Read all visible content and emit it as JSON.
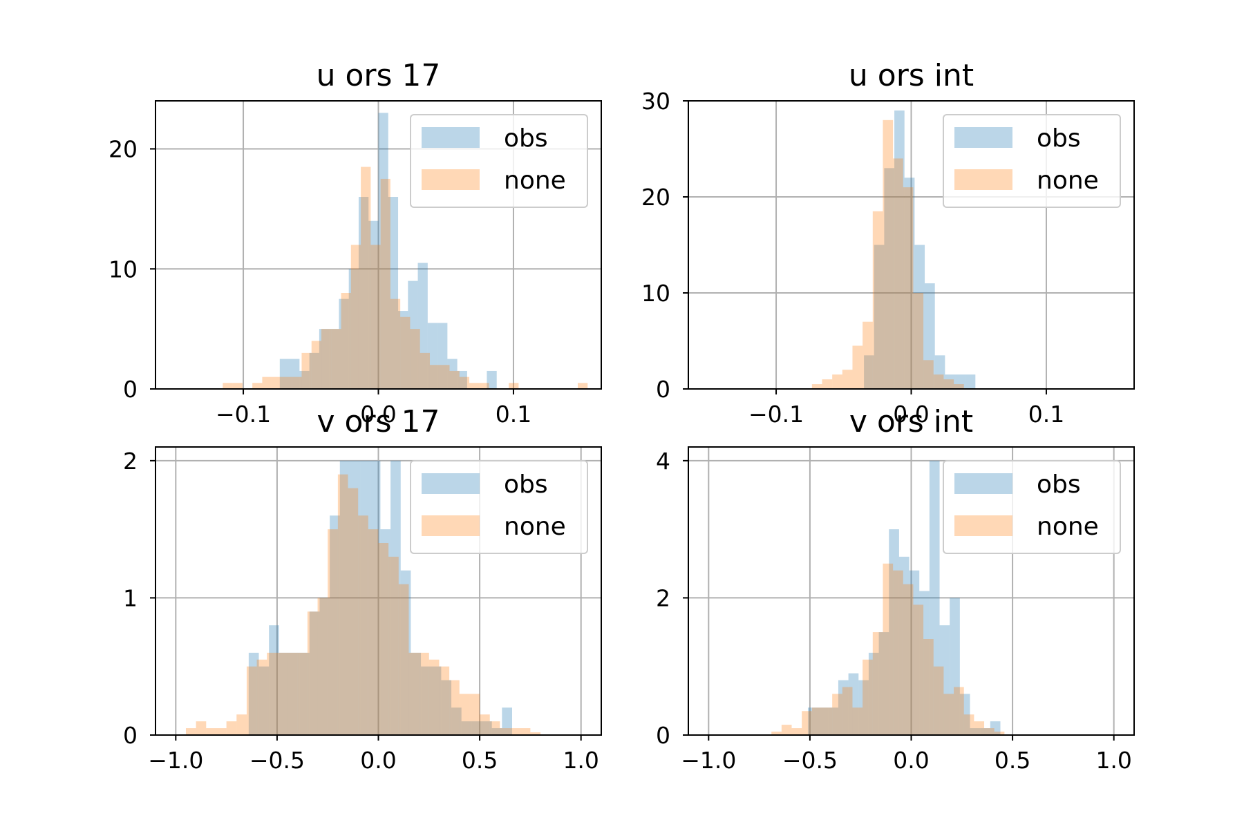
{
  "figure": {
    "background": "#ffffff"
  },
  "colors": {
    "obs": "#1f77b4",
    "none": "#ff7f0e",
    "bar_alpha": 0.3
  },
  "chart_data": [
    {
      "type": "bar",
      "title": "u ors 17",
      "xlim": [
        -0.165,
        0.165
      ],
      "ylim": [
        0,
        24
      ],
      "xticks": [
        -0.1,
        0.0,
        0.1
      ],
      "xtick_labels": [
        "−0.1",
        "0.0",
        "0.1"
      ],
      "yticks": [
        0,
        10,
        20
      ],
      "ytick_labels": [
        "0",
        "10",
        "20"
      ],
      "grid": true,
      "legend_position": "upper right",
      "series": [
        {
          "name": "obs",
          "bin_start": -0.073,
          "bin_width": 0.0073,
          "counts": [
            2.5,
            2.5,
            1.5,
            3,
            5,
            5,
            7.5,
            10,
            16,
            14,
            23,
            16,
            6.5,
            9,
            10.5,
            5.5,
            5.5,
            2.5,
            1.5,
            0,
            0,
            1.5
          ]
        },
        {
          "name": "none",
          "bin_start": -0.1152,
          "bin_width": 0.0073,
          "counts": [
            0.5,
            0.5,
            0,
            0.5,
            1,
            1,
            1,
            1,
            3,
            4,
            5,
            5,
            8,
            12,
            18.5,
            12,
            17.5,
            7.5,
            6,
            5,
            3,
            2,
            2,
            1.5,
            1,
            0.5,
            0.5,
            0,
            0,
            0.5,
            0,
            0,
            0,
            0,
            0,
            0,
            0.5
          ]
        }
      ]
    },
    {
      "type": "bar",
      "title": "u ors int",
      "xlim": [
        -0.165,
        0.165
      ],
      "ylim": [
        0,
        30
      ],
      "xticks": [
        -0.1,
        0.0,
        0.1
      ],
      "xtick_labels": [
        "−0.1",
        "0.0",
        "0.1"
      ],
      "yticks": [
        0,
        10,
        20,
        30
      ],
      "ytick_labels": [
        "0",
        "10",
        "20",
        "30"
      ],
      "grid": true,
      "legend_position": "upper right",
      "series": [
        {
          "name": "obs",
          "bin_start": -0.035,
          "bin_width": 0.0075,
          "counts": [
            3.5,
            15,
            23,
            29,
            22,
            15,
            11,
            3.5,
            1.5,
            1.5,
            1.5
          ]
        },
        {
          "name": "none",
          "bin_start": -0.0735,
          "bin_width": 0.0075,
          "counts": [
            0.5,
            1,
            1.5,
            2,
            4.5,
            7,
            18.5,
            28,
            24,
            21,
            10,
            3,
            1.5,
            1,
            0.5
          ]
        }
      ]
    },
    {
      "type": "bar",
      "title": "v ors 17",
      "xlim": [
        -1.1,
        1.1
      ],
      "ylim": [
        0,
        2.1
      ],
      "xticks": [
        -1.0,
        -0.5,
        0.0,
        0.5,
        1.0
      ],
      "xtick_labels": [
        "−1.0",
        "−0.5",
        "0.0",
        "0.5",
        "1.0"
      ],
      "yticks": [
        0,
        1,
        2
      ],
      "ytick_labels": [
        "0",
        "1",
        "2"
      ],
      "grid": true,
      "legend_position": "upper right",
      "series": [
        {
          "name": "obs",
          "bin_start": -0.64,
          "bin_width": 0.05,
          "counts": [
            0.6,
            0.5,
            0.8,
            0.6,
            0.6,
            0.6,
            0.9,
            1.0,
            1.6,
            2.0,
            2.0,
            2.0,
            2.0,
            1.5,
            2.0,
            1.2,
            0.6,
            0.5,
            0.5,
            0.4,
            0.2,
            0.1,
            0.1,
            0.1,
            0.05,
            0.2
          ]
        },
        {
          "name": "none",
          "bin_start": -0.95,
          "bin_width": 0.05,
          "counts": [
            0.05,
            0.1,
            0.05,
            0.05,
            0.1,
            0.15,
            0.5,
            0.55,
            0.6,
            0.6,
            0.6,
            0.6,
            0.9,
            1.0,
            1.5,
            1.9,
            1.8,
            1.6,
            1.5,
            1.4,
            1.3,
            1.1,
            0.6,
            0.6,
            0.55,
            0.5,
            0.4,
            0.3,
            0.3,
            0.15,
            0.1,
            0.05,
            0.05,
            0.05,
            0.02
          ]
        }
      ]
    },
    {
      "type": "bar",
      "title": "v ors int",
      "xlim": [
        -1.1,
        1.1
      ],
      "ylim": [
        0,
        4.2
      ],
      "xticks": [
        -1.0,
        -0.5,
        0.0,
        0.5,
        1.0
      ],
      "xtick_labels": [
        "−1.0",
        "−0.5",
        "0.0",
        "0.5",
        "1.0"
      ],
      "yticks": [
        0,
        2,
        4
      ],
      "ytick_labels": [
        "0",
        "2",
        "4"
      ],
      "grid": true,
      "legend_position": "upper right",
      "series": [
        {
          "name": "obs",
          "bin_start": -0.51,
          "bin_width": 0.05,
          "counts": [
            0.4,
            0.4,
            0.4,
            0.8,
            0.9,
            0.8,
            1.2,
            1.5,
            3.0,
            2.6,
            2.4,
            2.1,
            4.0,
            1.6,
            2.0,
            0.6,
            0.1,
            0.1,
            0.2
          ]
        },
        {
          "name": "none",
          "bin_start": -0.69,
          "bin_width": 0.05,
          "counts": [
            0.05,
            0.15,
            0.1,
            0.35,
            0.4,
            0.4,
            0.6,
            0.7,
            0.4,
            1.1,
            1.5,
            2.5,
            2.4,
            2.2,
            1.9,
            1.4,
            1.0,
            0.6,
            0.7,
            0.3,
            0.2,
            0.1,
            0.05
          ]
        }
      ]
    }
  ]
}
